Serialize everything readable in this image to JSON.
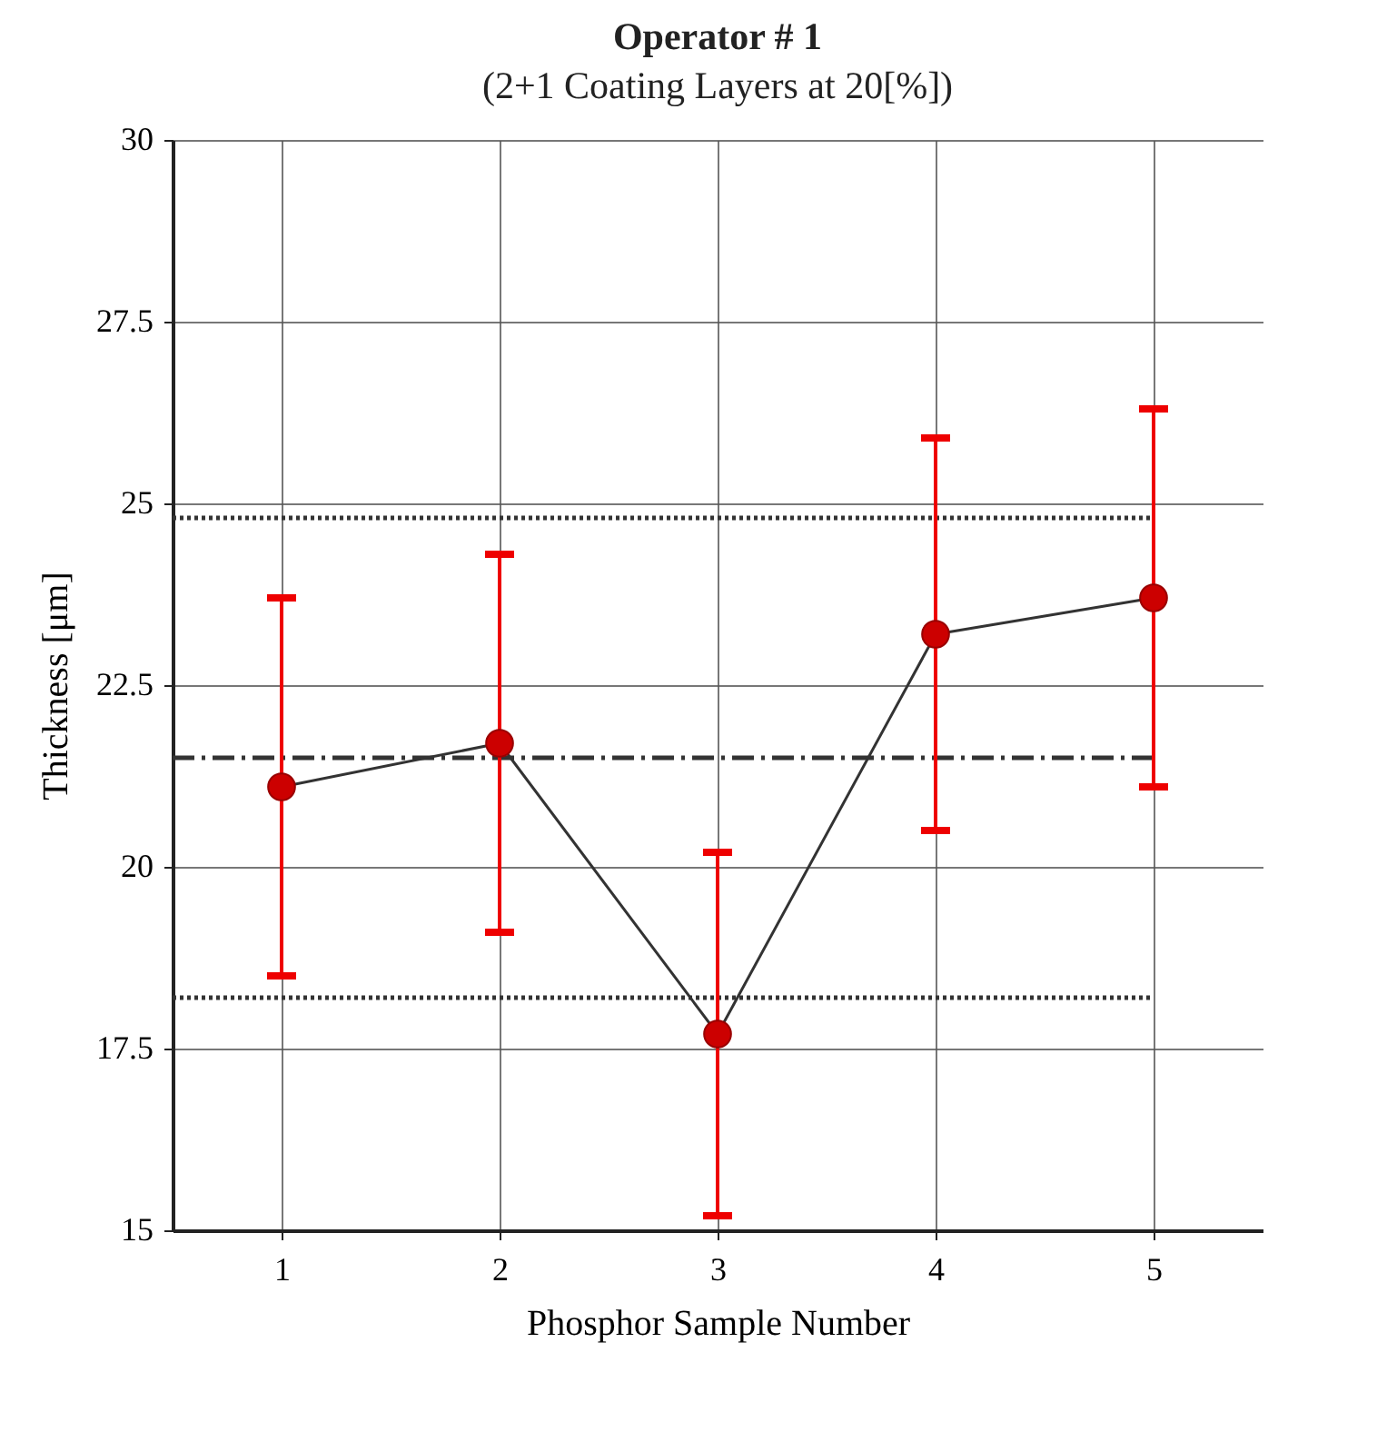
{
  "chart_data": {
    "type": "line",
    "title": "Operator # 1",
    "subtitle": "(2+1 Coating Layers at 20[%])",
    "xlabel": "Phosphor Sample Number",
    "ylabel": "Thickness [μm]",
    "x": [
      1,
      2,
      3,
      4,
      5
    ],
    "series": [
      {
        "color": "#cc0000",
        "values": [
          21.1,
          21.7,
          17.7,
          23.2,
          23.7
        ],
        "errors": [
          2.6,
          2.6,
          2.5,
          2.7,
          2.6
        ]
      }
    ],
    "xlim": [
      0.5,
      5.5
    ],
    "xticks": [
      1,
      2,
      3,
      4,
      5
    ],
    "ylim": [
      15,
      30
    ],
    "yticks": [
      15,
      17.5,
      20,
      22.5,
      25,
      27.5,
      30
    ],
    "ref_lines": [
      {
        "axis": "y",
        "value": 24.8,
        "color": "#333333",
        "line_style": "dotted"
      },
      {
        "axis": "y",
        "value": 21.5,
        "color": "#333333",
        "line_style": "dashed"
      },
      {
        "axis": "y",
        "value": 18.2,
        "color": "#333333",
        "line_style": "dotted"
      }
    ],
    "grid": true,
    "marker": "circle",
    "line_style": "solid"
  }
}
